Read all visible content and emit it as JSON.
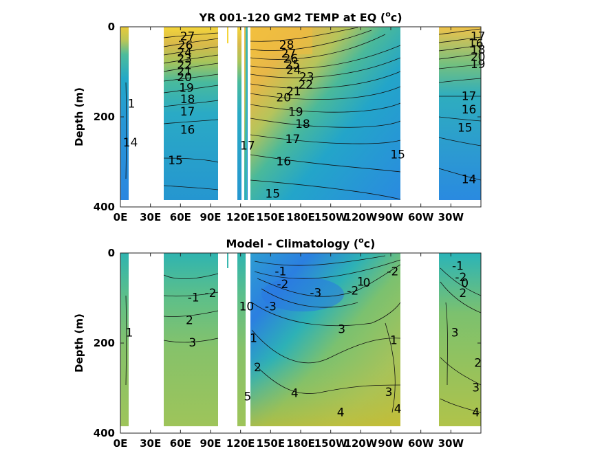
{
  "chart_data": [
    {
      "type": "heatmap",
      "title": "YR 001-120 GM2 TEMP at EQ (",
      "title_unit_sup": "o",
      "title_unit": "c)",
      "ylabel": "Depth (m)",
      "xlabel": "",
      "xticks": [
        "0E",
        "30E",
        "60E",
        "90E",
        "120E",
        "150E",
        "180E",
        "150W",
        "120W",
        "90W",
        "60W",
        "30W"
      ],
      "yticks": [
        "0",
        "200",
        "400"
      ],
      "xlim": [
        0,
        360
      ],
      "ylim": [
        0,
        400
      ],
      "y_reversed": true,
      "colormap": "parula",
      "contour_labels": [
        {
          "text": "27",
          "lon": 67,
          "depth": 22
        },
        {
          "text": "26",
          "lon": 65,
          "depth": 42
        },
        {
          "text": "24",
          "lon": 64,
          "depth": 58
        },
        {
          "text": "23",
          "lon": 64,
          "depth": 72
        },
        {
          "text": "22",
          "lon": 64,
          "depth": 86
        },
        {
          "text": "21",
          "lon": 64,
          "depth": 100
        },
        {
          "text": "20",
          "lon": 64,
          "depth": 113
        },
        {
          "text": "19",
          "lon": 66,
          "depth": 137
        },
        {
          "text": "18",
          "lon": 67,
          "depth": 162
        },
        {
          "text": "17",
          "lon": 67,
          "depth": 189
        },
        {
          "text": "16",
          "lon": 67,
          "depth": 230
        },
        {
          "text": "15",
          "lon": 55,
          "depth": 298
        },
        {
          "text": "14",
          "lon": 10,
          "depth": 258
        },
        {
          "text": "1",
          "lon": 11,
          "depth": 172
        },
        {
          "text": "17",
          "lon": 127,
          "depth": 265
        },
        {
          "text": "15",
          "lon": 152,
          "depth": 372
        },
        {
          "text": "28",
          "lon": 166,
          "depth": 41
        },
        {
          "text": "27",
          "lon": 168,
          "depth": 60
        },
        {
          "text": "26",
          "lon": 170,
          "depth": 72
        },
        {
          "text": "25",
          "lon": 172,
          "depth": 85
        },
        {
          "text": "24",
          "lon": 173,
          "depth": 97
        },
        {
          "text": "23",
          "lon": 186,
          "depth": 112
        },
        {
          "text": "22",
          "lon": 185,
          "depth": 130
        },
        {
          "text": "21",
          "lon": 173,
          "depth": 144
        },
        {
          "text": "20",
          "lon": 163,
          "depth": 158
        },
        {
          "text": "19",
          "lon": 175,
          "depth": 190
        },
        {
          "text": "18",
          "lon": 182,
          "depth": 217
        },
        {
          "text": "17",
          "lon": 172,
          "depth": 250
        },
        {
          "text": "16",
          "lon": 163,
          "depth": 300
        },
        {
          "text": "15",
          "lon": 277,
          "depth": 285
        },
        {
          "text": "17",
          "lon": 357,
          "depth": 22
        },
        {
          "text": "16",
          "lon": 355,
          "depth": 38
        },
        {
          "text": "18",
          "lon": 357,
          "depth": 52
        },
        {
          "text": "20",
          "lon": 357,
          "depth": 68
        },
        {
          "text": "19",
          "lon": 357,
          "depth": 84
        },
        {
          "text": "17",
          "lon": 348,
          "depth": 155
        },
        {
          "text": "16",
          "lon": 348,
          "depth": 185
        },
        {
          "text": "15",
          "lon": 344,
          "depth": 225
        },
        {
          "text": "14",
          "lon": 348,
          "depth": 340
        }
      ]
    },
    {
      "type": "heatmap",
      "title": "Model - Climatology (",
      "title_unit_sup": "o",
      "title_unit": "c)",
      "ylabel": "Depth (m)",
      "xlabel": "",
      "xticks": [
        "0E",
        "30E",
        "60E",
        "90E",
        "120E",
        "150E",
        "180E",
        "150W",
        "120W",
        "90W",
        "60W",
        "30W"
      ],
      "yticks": [
        "0",
        "200",
        "400"
      ],
      "xlim": [
        0,
        360
      ],
      "ylim": [
        0,
        400
      ],
      "y_reversed": true,
      "colormap": "parula",
      "contour_labels": [
        {
          "text": "1",
          "lon": 9,
          "depth": 178
        },
        {
          "text": "-1",
          "lon": 73,
          "depth": 100
        },
        {
          "text": "-2",
          "lon": 90,
          "depth": 90
        },
        {
          "text": "2",
          "lon": 69,
          "depth": 150
        },
        {
          "text": "3",
          "lon": 72,
          "depth": 200
        },
        {
          "text": "10",
          "lon": 126,
          "depth": 120
        },
        {
          "text": "1",
          "lon": 133,
          "depth": 190
        },
        {
          "text": "2",
          "lon": 137,
          "depth": 255
        },
        {
          "text": "5",
          "lon": 127,
          "depth": 320
        },
        {
          "text": "-1",
          "lon": 160,
          "depth": 42
        },
        {
          "text": "-2",
          "lon": 162,
          "depth": 70
        },
        {
          "text": "-3",
          "lon": 150,
          "depth": 120
        },
        {
          "text": "-3",
          "lon": 195,
          "depth": 89
        },
        {
          "text": "-2",
          "lon": 232,
          "depth": 85
        },
        {
          "text": "0",
          "lon": 246,
          "depth": 67
        },
        {
          "text": "1",
          "lon": 240,
          "depth": 65
        },
        {
          "text": "-2",
          "lon": 272,
          "depth": 42
        },
        {
          "text": "3",
          "lon": 221,
          "depth": 170
        },
        {
          "text": "1",
          "lon": 273,
          "depth": 195
        },
        {
          "text": "4",
          "lon": 174,
          "depth": 312
        },
        {
          "text": "3",
          "lon": 268,
          "depth": 310
        },
        {
          "text": "4",
          "lon": 220,
          "depth": 355
        },
        {
          "text": "4",
          "lon": 277,
          "depth": 347
        },
        {
          "text": "-1",
          "lon": 337,
          "depth": 30
        },
        {
          "text": "-2",
          "lon": 340,
          "depth": 55
        },
        {
          "text": "0",
          "lon": 344,
          "depth": 68
        },
        {
          "text": "2",
          "lon": 342,
          "depth": 90
        },
        {
          "text": "3",
          "lon": 334,
          "depth": 178
        },
        {
          "text": "2",
          "lon": 357,
          "depth": 245
        },
        {
          "text": "3",
          "lon": 355,
          "depth": 300
        },
        {
          "text": "4",
          "lon": 355,
          "depth": 355
        }
      ]
    }
  ]
}
